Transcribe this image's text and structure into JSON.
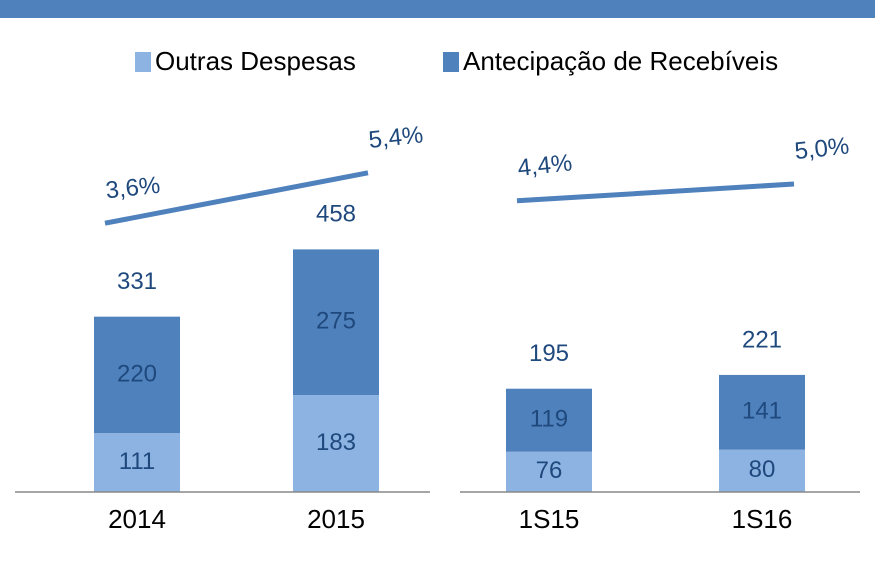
{
  "chart_data": {
    "type": "bar",
    "categories": [
      "2014",
      "2015",
      "1S15",
      "1S16"
    ],
    "series": [
      {
        "name": "Outras Despesas",
        "color": "#8db3e2",
        "values": [
          111,
          183,
          76,
          80
        ]
      },
      {
        "name": "Antecipação de Recebíveis",
        "color": "#4f81bd",
        "values": [
          220,
          275,
          119,
          141
        ]
      }
    ],
    "totals": [
      331,
      458,
      195,
      221
    ],
    "line": {
      "color": "#4f81bd",
      "axis": "y2",
      "values": [
        3.6,
        5.4,
        4.4,
        5.0
      ],
      "value_labels": [
        "3,6%",
        "5,4%",
        "4,4%",
        "5,0%"
      ]
    },
    "ylim": [
      0,
      740
    ],
    "y2lim": [
      -6,
      8
    ],
    "stacked": true,
    "legend": "top"
  }
}
